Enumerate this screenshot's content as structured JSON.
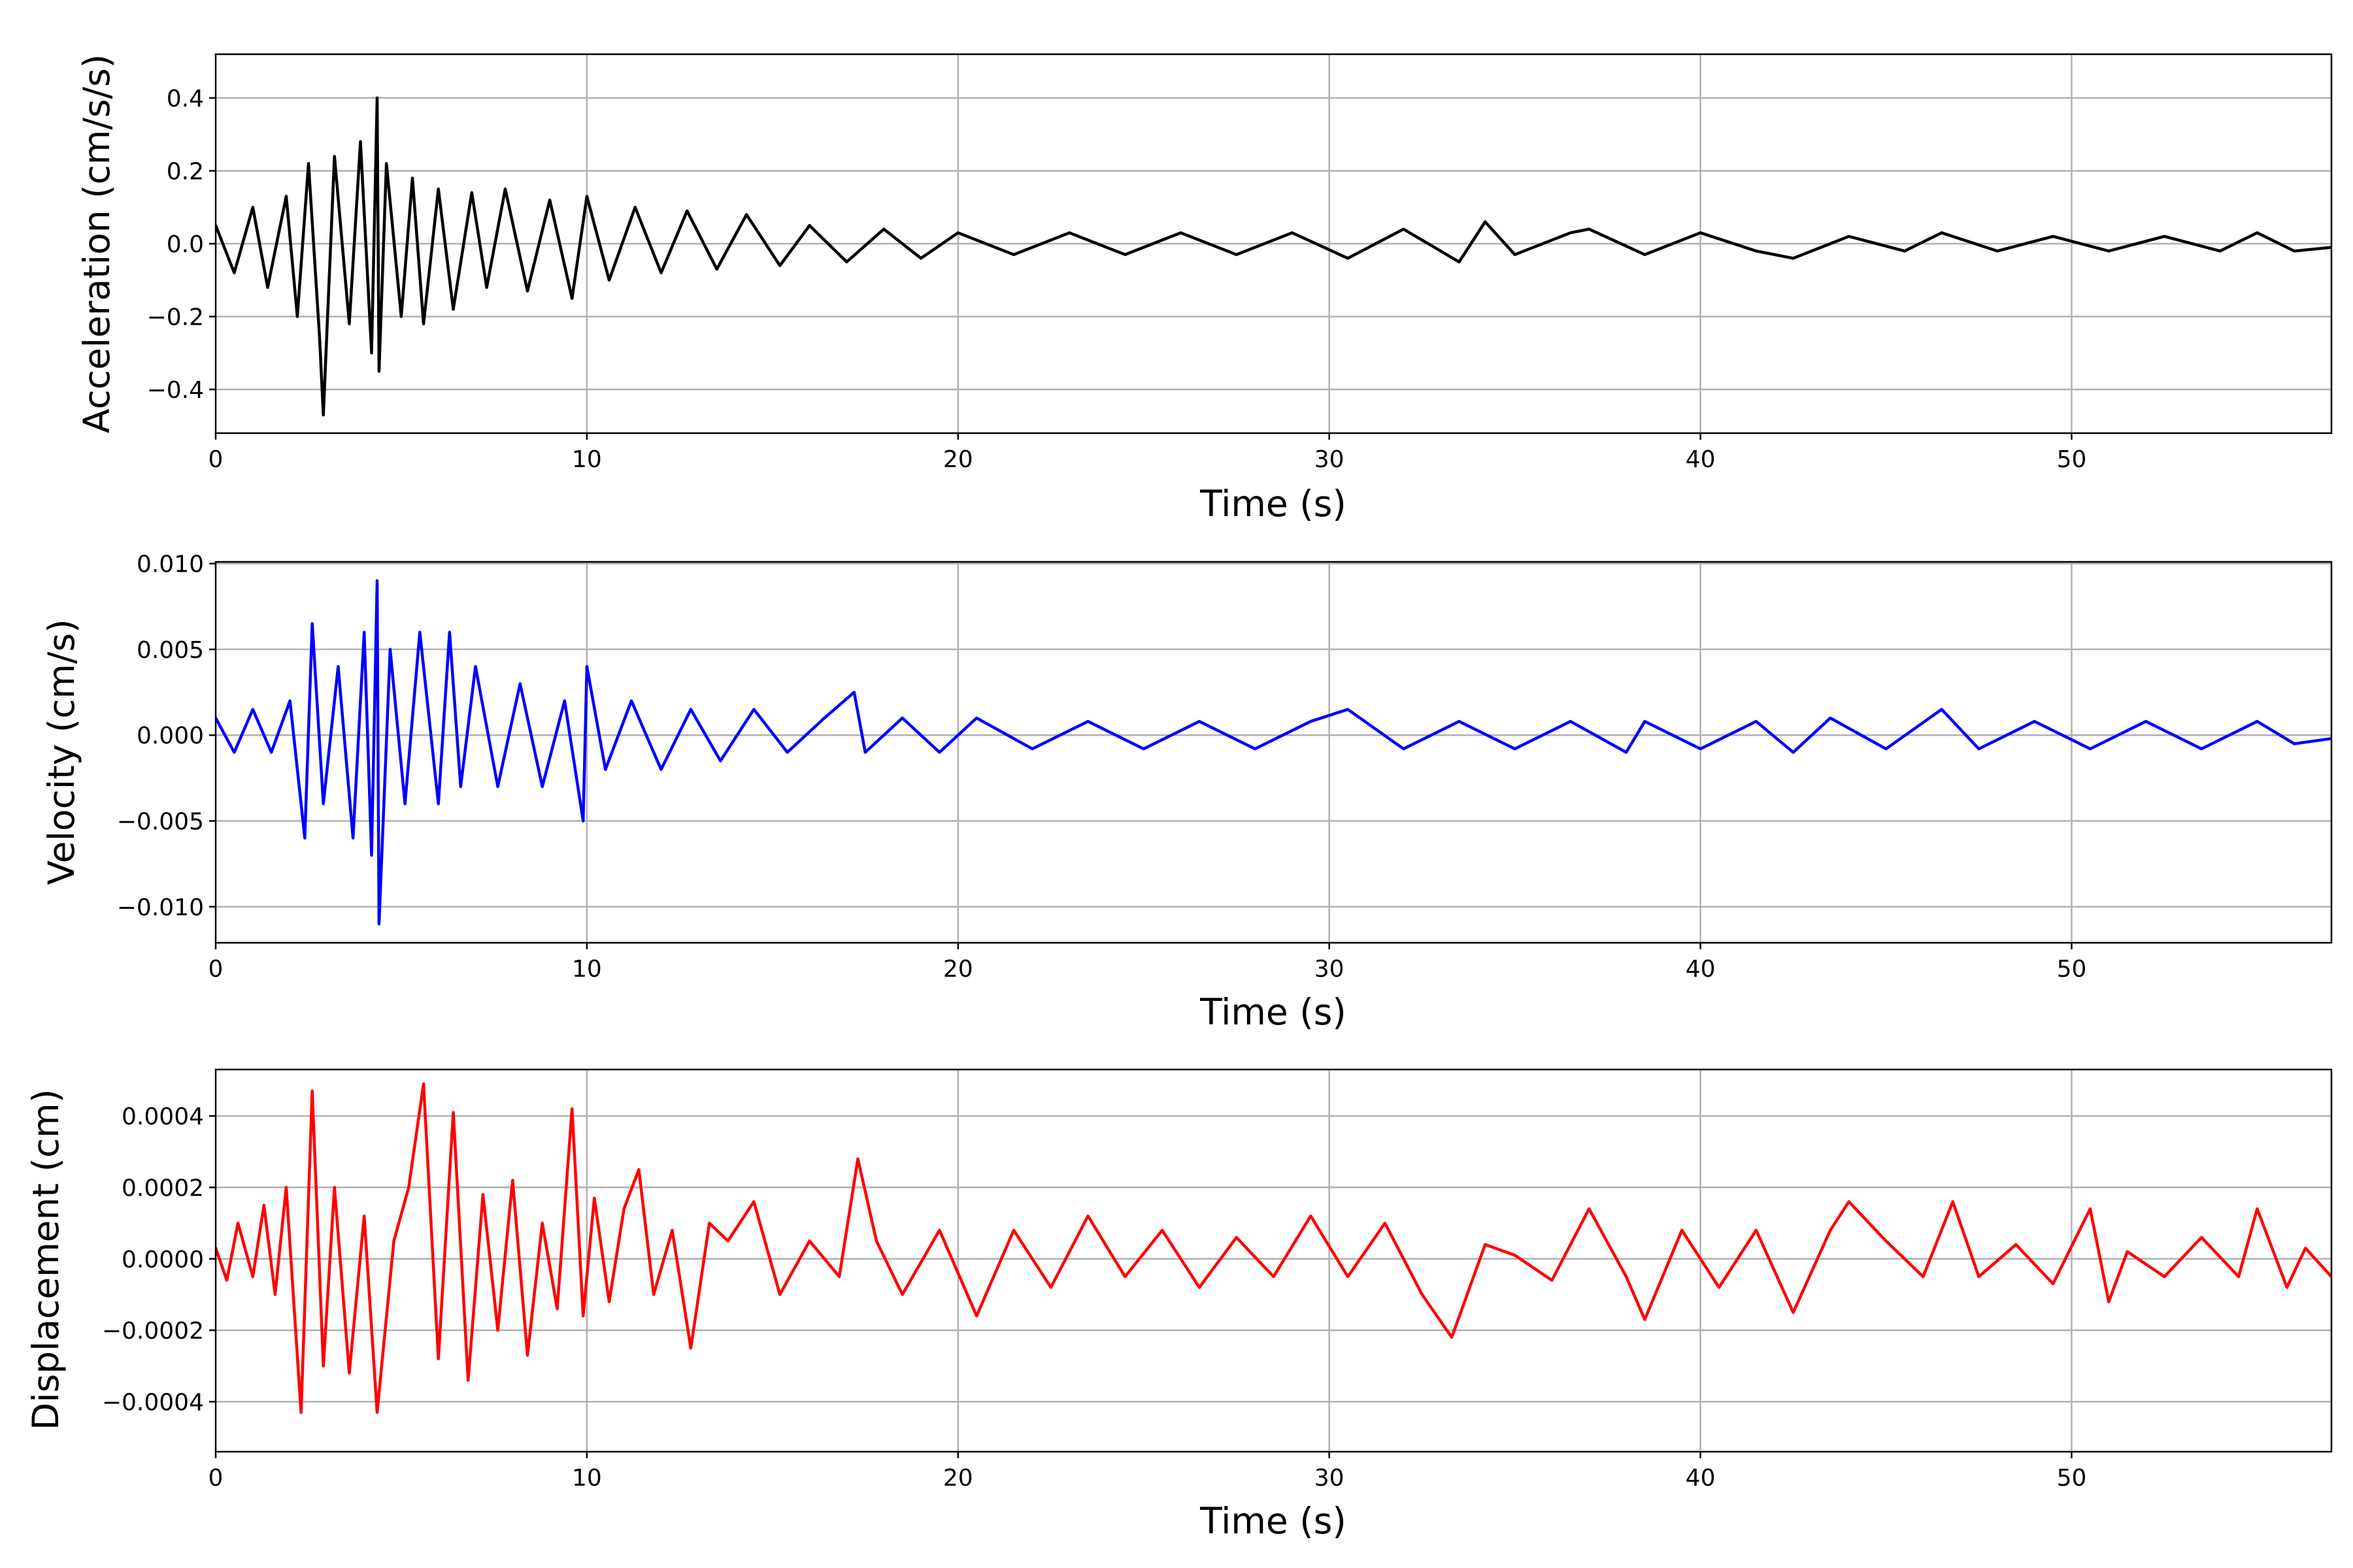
{
  "chart_data": [
    {
      "type": "line",
      "xlabel": "Time (s)",
      "ylabel": "Acceleration (cm/s/s)",
      "xlim": [
        0,
        57
      ],
      "ylim": [
        -0.52,
        0.52
      ],
      "xticks": [
        0,
        10,
        20,
        30,
        40,
        50
      ],
      "xtick_labels": [
        "0",
        "10",
        "20",
        "30",
        "40",
        "50"
      ],
      "yticks": [
        -0.4,
        -0.2,
        0.0,
        0.2,
        0.4
      ],
      "ytick_labels": [
        "−0.4",
        "−0.2",
        "0.0",
        "0.2",
        "0.4"
      ],
      "grid": true,
      "series": [
        {
          "color": "#000000",
          "x": [
            0,
            0.5,
            1,
            1.4,
            1.9,
            2.2,
            2.5,
            2.8,
            2.9,
            3.2,
            3.6,
            3.9,
            4.2,
            4.35,
            4.4,
            4.6,
            5.0,
            5.3,
            5.6,
            6.0,
            6.4,
            6.9,
            7.3,
            7.8,
            8.4,
            9.0,
            9.6,
            10.0,
            10.6,
            11.3,
            12.0,
            12.7,
            13.5,
            14.3,
            15.2,
            16.0,
            17.0,
            18.0,
            19.0,
            20.0,
            21.5,
            23.0,
            24.5,
            26.0,
            27.5,
            29.0,
            30.5,
            32.0,
            33.5,
            34.2,
            35.0,
            36.5,
            37.0,
            38.5,
            40.0,
            41.5,
            42.5,
            44.0,
            45.5,
            46.5,
            48.0,
            49.5,
            51.0,
            52.5,
            54.0,
            55.0,
            56.0,
            57.0
          ],
          "y": [
            0.05,
            -0.08,
            0.1,
            -0.12,
            0.13,
            -0.2,
            0.22,
            -0.26,
            -0.47,
            0.24,
            -0.22,
            0.28,
            -0.3,
            0.4,
            -0.35,
            0.22,
            -0.2,
            0.18,
            -0.22,
            0.15,
            -0.18,
            0.14,
            -0.12,
            0.15,
            -0.13,
            0.12,
            -0.15,
            0.13,
            -0.1,
            0.1,
            -0.08,
            0.09,
            -0.07,
            0.08,
            -0.06,
            0.05,
            -0.05,
            0.04,
            -0.04,
            0.03,
            -0.03,
            0.03,
            -0.03,
            0.03,
            -0.03,
            0.03,
            -0.04,
            0.04,
            -0.05,
            0.06,
            -0.03,
            0.03,
            0.04,
            -0.03,
            0.03,
            -0.02,
            -0.04,
            0.02,
            -0.02,
            0.03,
            -0.02,
            0.02,
            -0.02,
            0.02,
            -0.02,
            0.03,
            -0.02,
            -0.01
          ]
        }
      ]
    },
    {
      "type": "line",
      "xlabel": "Time (s)",
      "ylabel": "Velocity (cm/s)",
      "xlim": [
        0,
        57
      ],
      "ylim": [
        -0.0121,
        0.0101
      ],
      "xticks": [
        0,
        10,
        20,
        30,
        40,
        50
      ],
      "xtick_labels": [
        "0",
        "10",
        "20",
        "30",
        "40",
        "50"
      ],
      "yticks": [
        -0.01,
        -0.005,
        0.0,
        0.005,
        0.01
      ],
      "ytick_labels": [
        "−0.010",
        "−0.005",
        "0.000",
        "0.005",
        "0.010"
      ],
      "grid": true,
      "series": [
        {
          "color": "#0000ff",
          "x": [
            0,
            0.5,
            1,
            1.5,
            2.0,
            2.4,
            2.6,
            2.9,
            3.3,
            3.7,
            4.0,
            4.2,
            4.35,
            4.4,
            4.7,
            5.1,
            5.5,
            6.0,
            6.3,
            6.6,
            7.0,
            7.6,
            8.2,
            8.8,
            9.4,
            9.9,
            10.0,
            10.5,
            11.2,
            12.0,
            12.8,
            13.6,
            14.5,
            15.4,
            16.4,
            17.2,
            17.5,
            18.5,
            19.5,
            20.5,
            22.0,
            23.5,
            25.0,
            26.5,
            28.0,
            29.5,
            30.5,
            32.0,
            33.5,
            35.0,
            36.5,
            38.0,
            38.5,
            40.0,
            41.5,
            42.5,
            43.5,
            45.0,
            46.5,
            47.5,
            49.0,
            50.5,
            52.0,
            53.5,
            55.0,
            56.0,
            57.0
          ],
          "y": [
            0.001,
            -0.001,
            0.0015,
            -0.001,
            0.002,
            -0.006,
            0.0065,
            -0.004,
            0.004,
            -0.006,
            0.006,
            -0.007,
            0.009,
            -0.011,
            0.005,
            -0.004,
            0.006,
            -0.004,
            0.006,
            -0.003,
            0.004,
            -0.003,
            0.003,
            -0.003,
            0.002,
            -0.005,
            0.004,
            -0.002,
            0.002,
            -0.002,
            0.0015,
            -0.0015,
            0.0015,
            -0.001,
            0.001,
            0.0025,
            -0.001,
            0.001,
            -0.001,
            0.001,
            -0.0008,
            0.0008,
            -0.0008,
            0.0008,
            -0.0008,
            0.0008,
            0.0015,
            -0.0008,
            0.0008,
            -0.0008,
            0.0008,
            -0.001,
            0.0008,
            -0.0008,
            0.0008,
            -0.001,
            0.001,
            -0.0008,
            0.0015,
            -0.0008,
            0.0008,
            -0.0008,
            0.0008,
            -0.0008,
            0.0008,
            -0.0005,
            -0.0002
          ]
        }
      ]
    },
    {
      "type": "line",
      "xlabel": "Time (s)",
      "ylabel": "Displacement (cm)",
      "xlim": [
        0,
        57
      ],
      "ylim": [
        -0.00054,
        0.00053
      ],
      "xticks": [
        0,
        10,
        20,
        30,
        40,
        50
      ],
      "xtick_labels": [
        "0",
        "10",
        "20",
        "30",
        "40",
        "50"
      ],
      "yticks": [
        -0.0004,
        -0.0002,
        0.0,
        0.0002,
        0.0004
      ],
      "ytick_labels": [
        "−0.0004",
        "−0.0002",
        "0.0000",
        "0.0002",
        "0.0004"
      ],
      "grid": true,
      "series": [
        {
          "color": "#ff0000",
          "x": [
            0,
            0.3,
            0.6,
            1.0,
            1.3,
            1.6,
            1.9,
            2.3,
            2.6,
            2.9,
            3.2,
            3.6,
            4.0,
            4.35,
            4.8,
            5.2,
            5.6,
            6.0,
            6.4,
            6.8,
            7.2,
            7.6,
            8.0,
            8.4,
            8.8,
            9.2,
            9.6,
            9.9,
            10.2,
            10.6,
            11.0,
            11.4,
            11.8,
            12.3,
            12.8,
            13.3,
            13.8,
            14.5,
            15.2,
            16.0,
            16.8,
            17.3,
            17.8,
            18.5,
            19.5,
            20.5,
            21.5,
            22.5,
            23.5,
            24.5,
            25.5,
            26.5,
            27.5,
            28.5,
            29.5,
            30.5,
            31.5,
            32.5,
            33.3,
            34.2,
            35.0,
            36.0,
            37.0,
            38.0,
            38.5,
            39.5,
            40.5,
            41.5,
            42.5,
            43.5,
            44.0,
            45.0,
            46.0,
            46.8,
            47.5,
            48.5,
            49.5,
            50.5,
            51.0,
            51.5,
            52.5,
            53.5,
            54.5,
            55.0,
            55.8,
            56.3,
            57.0
          ],
          "y": [
            3e-05,
            -6e-05,
            0.0001,
            -5e-05,
            0.00015,
            -0.0001,
            0.0002,
            -0.00043,
            0.00047,
            -0.0003,
            0.0002,
            -0.00032,
            0.00012,
            -0.00043,
            5e-05,
            0.0002,
            0.00049,
            -0.00028,
            0.00041,
            -0.00034,
            0.00018,
            -0.0002,
            0.00022,
            -0.00027,
            0.0001,
            -0.00014,
            0.00042,
            -0.00016,
            0.00017,
            -0.00012,
            0.00014,
            0.00025,
            -0.0001,
            8e-05,
            -0.00025,
            0.0001,
            5e-05,
            0.00016,
            -0.0001,
            5e-05,
            -5e-05,
            0.00028,
            5e-05,
            -0.0001,
            8e-05,
            -0.00016,
            8e-05,
            -8e-05,
            0.00012,
            -5e-05,
            8e-05,
            -8e-05,
            6e-05,
            -5e-05,
            0.00012,
            -5e-05,
            0.0001,
            -0.0001,
            -0.00022,
            4e-05,
            1e-05,
            -6e-05,
            0.00014,
            -5e-05,
            -0.00017,
            8e-05,
            -8e-05,
            8e-05,
            -0.00015,
            8e-05,
            0.00016,
            5e-05,
            -5e-05,
            0.00016,
            -5e-05,
            4e-05,
            -7e-05,
            0.00014,
            -0.00012,
            2e-05,
            -5e-05,
            6e-05,
            -5e-05,
            0.00014,
            -8e-05,
            3e-05,
            -5e-05
          ]
        }
      ]
    }
  ]
}
